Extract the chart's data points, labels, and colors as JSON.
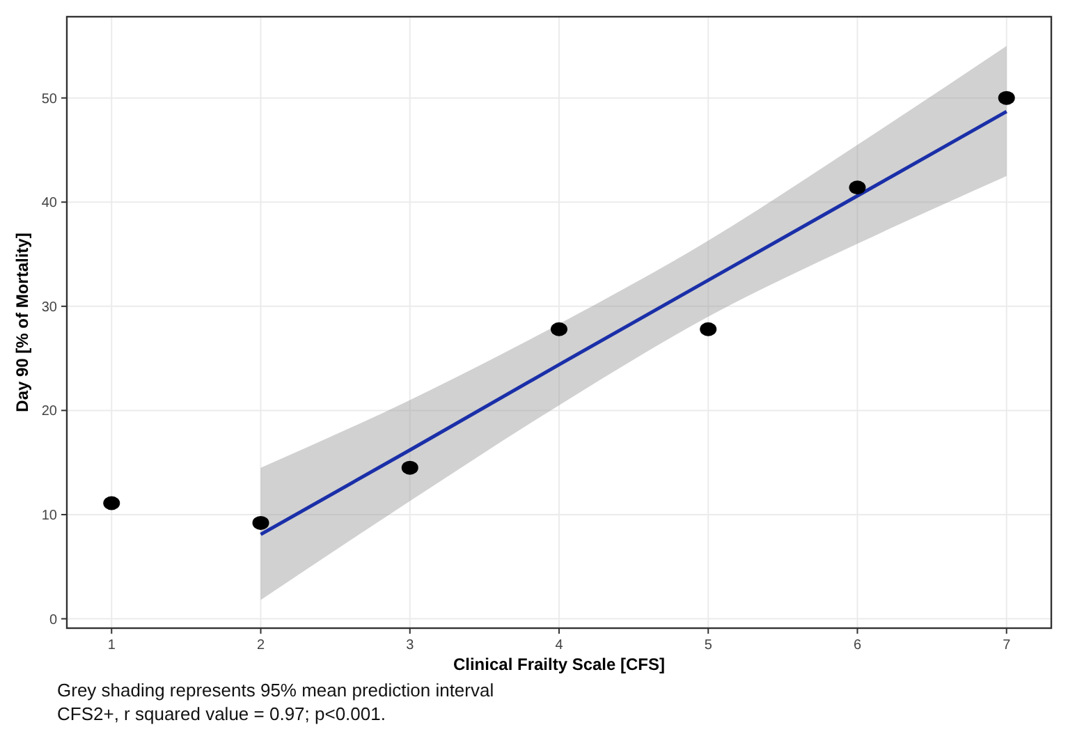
{
  "chart_data": {
    "type": "scatter",
    "xlabel": "Clinical Frailty Scale [CFS]",
    "ylabel": "Day 90 [% of Mortality]",
    "xlim": [
      0.7,
      7.3
    ],
    "ylim": [
      -0.9,
      57.8
    ],
    "xticks": [
      1,
      2,
      3,
      4,
      5,
      6,
      7
    ],
    "yticks": [
      0,
      10,
      20,
      30,
      40,
      50
    ],
    "grid": true,
    "series": [
      {
        "marker": "circle",
        "color": "#000000",
        "x": [
          1,
          2,
          3,
          4,
          5,
          6,
          7
        ],
        "values": [
          11.1,
          9.2,
          14.5,
          27.8,
          27.8,
          41.4,
          50
        ]
      },
      {
        "type": "line",
        "marker": "none",
        "color": "#1a2fa8",
        "x": [
          2,
          3,
          4,
          5,
          6,
          7
        ],
        "values": [
          8.1,
          16.2,
          24.4,
          32.5,
          40.6,
          48.7
        ],
        "lower": [
          1.8,
          11.3,
          20.5,
          29,
          36,
          42.5
        ],
        "upper": [
          14.5,
          21,
          28.3,
          36.3,
          45.5,
          55
        ]
      }
    ],
    "annotations": [
      "Grey shading represents 95% mean prediction interval",
      "CFS2+, r squared value = 0.97; p<0.001."
    ]
  }
}
